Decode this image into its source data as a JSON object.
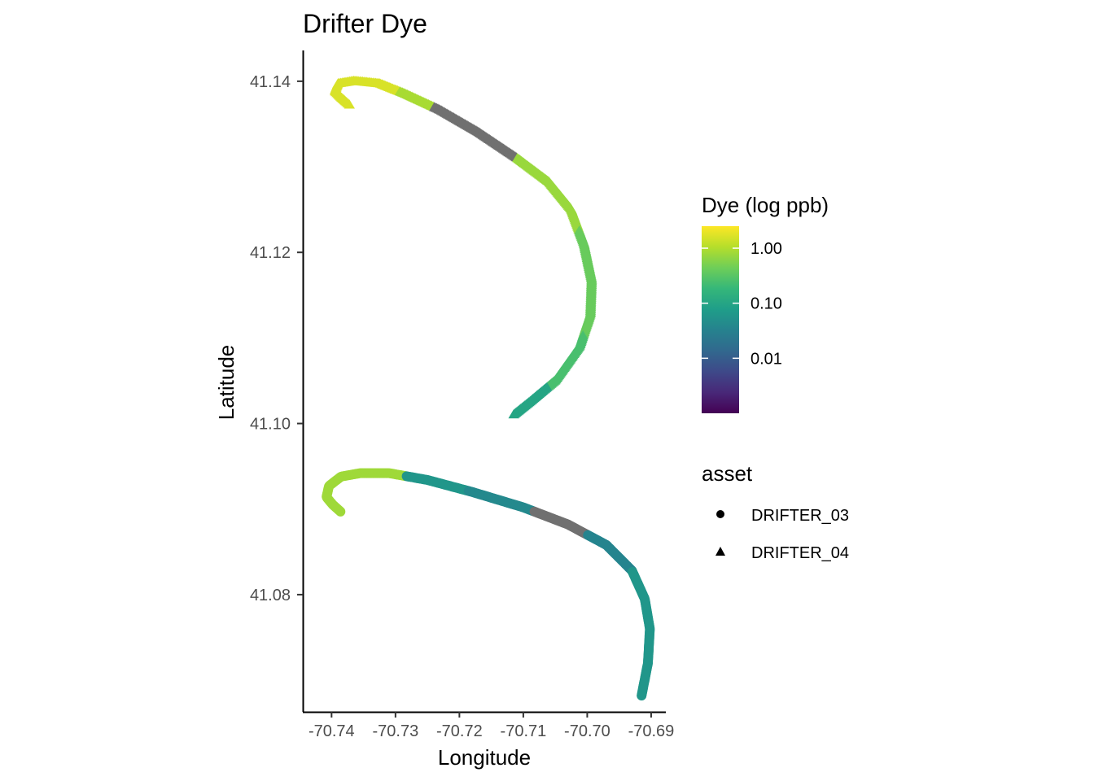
{
  "chart_data": {
    "type": "scatter",
    "title": "Drifter Dye",
    "xlabel": "Longitude",
    "ylabel": "Latitude",
    "xlim": [
      -70.7445,
      -70.6877
    ],
    "ylim": [
      41.0663,
      41.1436
    ],
    "x_ticks": [
      -70.74,
      -70.73,
      -70.72,
      -70.71,
      -70.7,
      -70.69
    ],
    "x_tick_labels": [
      "-70.74",
      "-70.73",
      "-70.72",
      "-70.71",
      "-70.70",
      "-70.69"
    ],
    "y_ticks": [
      41.08,
      41.1,
      41.12,
      41.14
    ],
    "y_tick_labels": [
      "41.08",
      "41.10",
      "41.12",
      "41.14"
    ],
    "grid": false,
    "color_scale": {
      "title": "Dye (log ppb)",
      "palette": "viridis",
      "log_range": [
        -3.0,
        0.4
      ],
      "ticks": [
        1.0,
        0.1,
        0.01
      ],
      "tick_labels": [
        "1.00",
        "0.10",
        "0.01"
      ],
      "na_color": "#707070",
      "stops": [
        "#440154",
        "#482878",
        "#3e4989",
        "#31688e",
        "#26828e",
        "#1f9e89",
        "#35b779",
        "#6ece58",
        "#b5de2b",
        "#fde725"
      ]
    },
    "shape_legend": {
      "title": "asset",
      "entries": [
        {
          "label": "DRIFTER_03",
          "shape": "circle"
        },
        {
          "label": "DRIFTER_04",
          "shape": "triangle"
        }
      ]
    },
    "series": [
      {
        "name": "DRIFTER_03",
        "shape": "circle",
        "path": [
          [
            -70.7386,
            41.0897
          ],
          [
            -70.7398,
            41.0905
          ],
          [
            -70.7408,
            41.0914
          ],
          [
            -70.7404,
            41.0927
          ],
          [
            -70.7385,
            41.0938
          ],
          [
            -70.7355,
            41.0942
          ],
          [
            -70.731,
            41.0942
          ],
          [
            -70.725,
            41.0934
          ],
          [
            -70.718,
            41.092
          ],
          [
            -70.71,
            41.0902
          ],
          [
            -70.703,
            41.0882
          ],
          [
            -70.697,
            41.0858
          ],
          [
            -70.693,
            41.0828
          ],
          [
            -70.691,
            41.0795
          ],
          [
            -70.6902,
            41.076
          ],
          [
            -70.6905,
            41.072
          ],
          [
            -70.6915,
            41.0682
          ]
        ],
        "dye_ranges": [
          {
            "from": 0.0,
            "to": 0.23,
            "dye": 0.8
          },
          {
            "from": 0.23,
            "to": 0.36,
            "dye": 0.06
          },
          {
            "from": 0.36,
            "to": 0.5,
            "dye": 0.04
          },
          {
            "from": 0.5,
            "to": 0.62,
            "dye": null
          },
          {
            "from": 0.62,
            "to": 0.74,
            "dye": 0.035
          },
          {
            "from": 0.74,
            "to": 1.0,
            "dye": 0.06
          }
        ]
      },
      {
        "name": "DRIFTER_04",
        "shape": "triangle",
        "path": [
          [
            -70.7372,
            41.1372
          ],
          [
            -70.7384,
            41.138
          ],
          [
            -70.7395,
            41.1388
          ],
          [
            -70.739,
            41.1397
          ],
          [
            -70.7365,
            41.14
          ],
          [
            -70.7325,
            41.1397
          ],
          [
            -70.7285,
            41.1385
          ],
          [
            -70.723,
            41.1366
          ],
          [
            -70.717,
            41.134
          ],
          [
            -70.711,
            41.131
          ],
          [
            -70.706,
            41.1282
          ],
          [
            -70.7025,
            41.125
          ],
          [
            -70.7005,
            41.121
          ],
          [
            -70.6993,
            41.1168
          ],
          [
            -70.6995,
            41.1128
          ],
          [
            -70.7012,
            41.109
          ],
          [
            -70.705,
            41.105
          ],
          [
            -70.709,
            41.1025
          ],
          [
            -70.7115,
            41.101
          ]
        ],
        "dye_ranges": [
          {
            "from": 0.0,
            "to": 0.17,
            "dye": 1.6
          },
          {
            "from": 0.17,
            "to": 0.24,
            "dye": 0.9
          },
          {
            "from": 0.24,
            "to": 0.42,
            "dye": null
          },
          {
            "from": 0.42,
            "to": 0.6,
            "dye": 0.75
          },
          {
            "from": 0.6,
            "to": 0.8,
            "dye": 0.4
          },
          {
            "from": 0.8,
            "to": 0.92,
            "dye": 0.25
          },
          {
            "from": 0.92,
            "to": 1.0,
            "dye": 0.1
          }
        ]
      }
    ]
  }
}
